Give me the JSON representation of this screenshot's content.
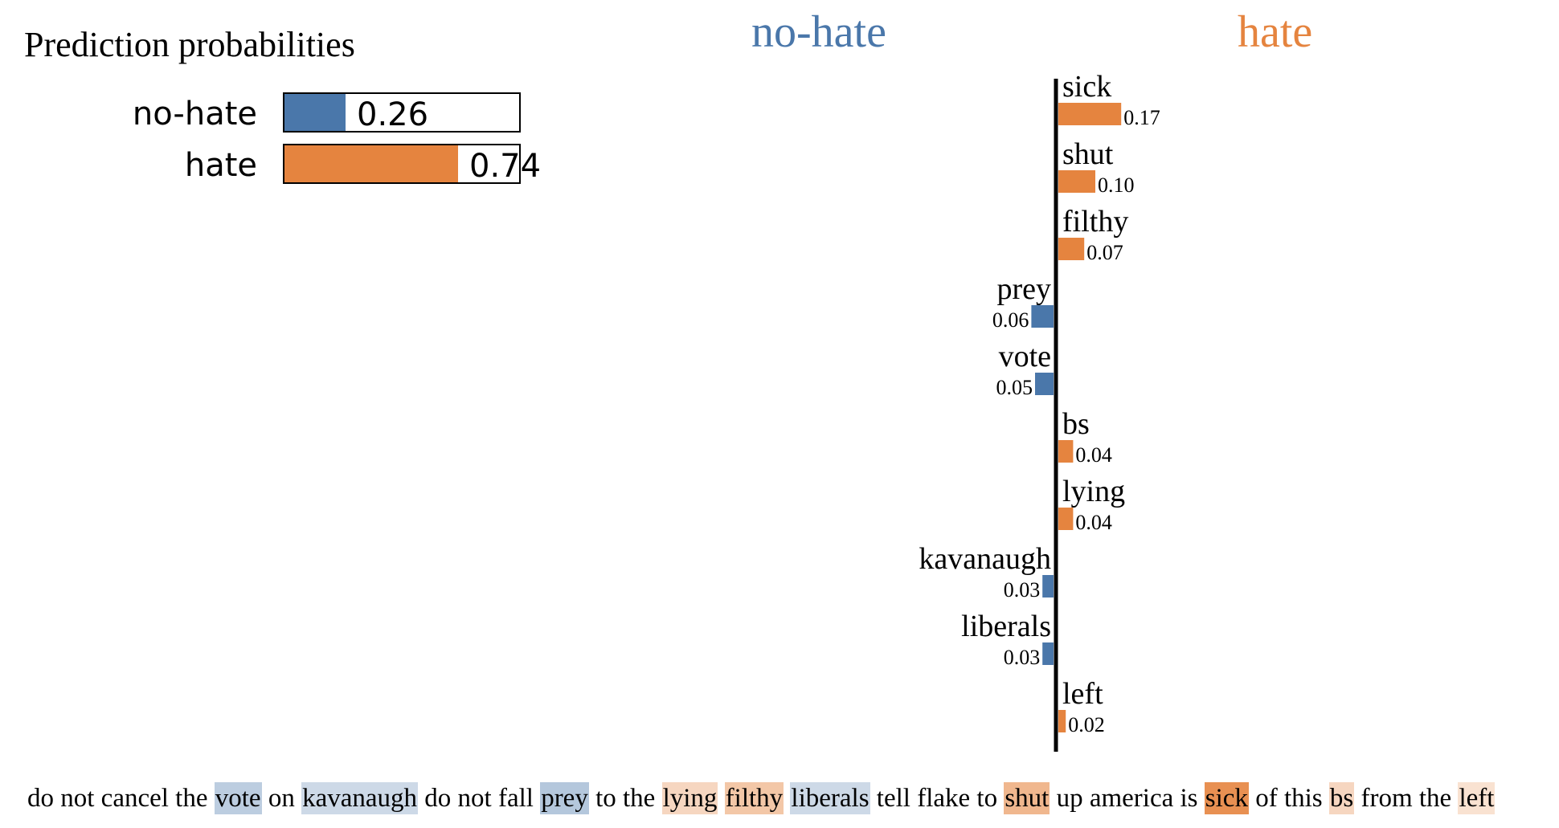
{
  "prediction": {
    "title": "Prediction probabilities",
    "classes": [
      {
        "label": "no-hate",
        "value": 0.26,
        "display": "0.26",
        "color": "#4a77aa"
      },
      {
        "label": "hate",
        "value": 0.74,
        "display": "0.74",
        "color": "#e5843f"
      }
    ]
  },
  "explanation": {
    "negative_class": "no-hate",
    "positive_class": "hate",
    "negative_color": "#4a77aa",
    "positive_color": "#e5843f"
  },
  "chart_data": {
    "type": "bar",
    "orientation": "horizontal",
    "features": [
      {
        "word": "sick",
        "weight": 0.17,
        "label": "0.17",
        "class": "hate"
      },
      {
        "word": "shut",
        "weight": 0.1,
        "label": "0.10",
        "class": "hate"
      },
      {
        "word": "filthy",
        "weight": 0.07,
        "label": "0.07",
        "class": "hate"
      },
      {
        "word": "prey",
        "weight": 0.06,
        "label": "0.06",
        "class": "no-hate"
      },
      {
        "word": "vote",
        "weight": 0.05,
        "label": "0.05",
        "class": "no-hate"
      },
      {
        "word": "bs",
        "weight": 0.04,
        "label": "0.04",
        "class": "hate"
      },
      {
        "word": "lying",
        "weight": 0.04,
        "label": "0.04",
        "class": "hate"
      },
      {
        "word": "kavanaugh",
        "weight": 0.03,
        "label": "0.03",
        "class": "no-hate"
      },
      {
        "word": "liberals",
        "weight": 0.03,
        "label": "0.03",
        "class": "no-hate"
      },
      {
        "word": "left",
        "weight": 0.02,
        "label": "0.02",
        "class": "hate"
      }
    ]
  },
  "text_tokens": [
    {
      "text": "do not cancel the "
    },
    {
      "text": "vote",
      "class": "no-hate",
      "weight": 0.05
    },
    {
      "text": " on "
    },
    {
      "text": "kavanaugh",
      "class": "no-hate",
      "weight": 0.03
    },
    {
      "text": " do not fall "
    },
    {
      "text": "prey",
      "class": "no-hate",
      "weight": 0.06
    },
    {
      "text": " to the "
    },
    {
      "text": "lying",
      "class": "hate",
      "weight": 0.04
    },
    {
      "text": " "
    },
    {
      "text": "filthy",
      "class": "hate",
      "weight": 0.07
    },
    {
      "text": " "
    },
    {
      "text": "liberals",
      "class": "no-hate",
      "weight": 0.03
    },
    {
      "text": " tell flake to "
    },
    {
      "text": "shut",
      "class": "hate",
      "weight": 0.1
    },
    {
      "text": " up america is "
    },
    {
      "text": "sick",
      "class": "hate",
      "weight": 0.17
    },
    {
      "text": " of this "
    },
    {
      "text": "bs",
      "class": "hate",
      "weight": 0.04
    },
    {
      "text": " from the "
    },
    {
      "text": "left",
      "class": "hate",
      "weight": 0.02
    }
  ]
}
